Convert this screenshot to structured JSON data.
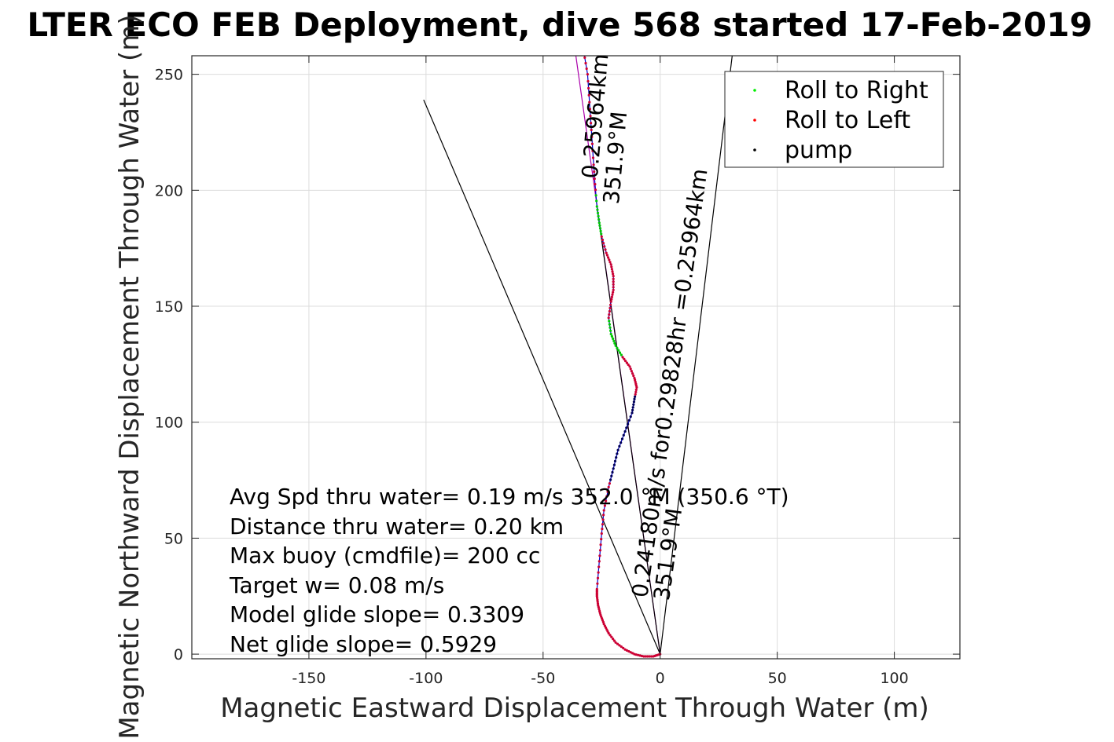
{
  "chart_data": {
    "type": "scatter",
    "title": "LTER ECO FEB Deployment, dive 568 started 17-Feb-2019",
    "xlabel": "Magnetic Eastward Displacement Through Water (m)",
    "ylabel": "Magnetic Northward Displacement Through Water (m)",
    "xlim": [
      -200,
      128
    ],
    "ylim": [
      -2,
      258
    ],
    "xticks": [
      -150,
      -100,
      -50,
      0,
      50,
      100
    ],
    "yticks": [
      0,
      50,
      100,
      150,
      200,
      250
    ],
    "grid": true,
    "legend_position": "top-right",
    "legend": [
      {
        "label": "Roll to Right",
        "color": "#00ee00"
      },
      {
        "label": "Roll to Left",
        "color": "#ff0000"
      },
      {
        "label": "pump",
        "color": "#000000"
      }
    ],
    "annotations": [
      "Avg Spd thru water=  0.19 m/s  352.0 °M (350.6 °T)",
      "Distance thru water=  0.20 km",
      "Max buoy (cmdfile)= 200 cc",
      "Target w= 0.08 m/s",
      "Model glide slope= 0.3309",
      "Net glide slope= 0.5929"
    ],
    "rotated_labels": [
      {
        "line1": "0.25964km",
        "line2": "351.9°M"
      },
      {
        "line1": "0.24180m/s for0.29828hr =0.25964km",
        "line2": "351.9°M"
      }
    ],
    "track": [
      [
        0,
        0
      ],
      [
        -3,
        -1
      ],
      [
        -7,
        -1
      ],
      [
        -11,
        0
      ],
      [
        -15,
        2
      ],
      [
        -19,
        5
      ],
      [
        -22,
        9
      ],
      [
        -24,
        13
      ],
      [
        -25.5,
        17
      ],
      [
        -26.5,
        21
      ],
      [
        -27,
        25
      ],
      [
        -27,
        28
      ],
      [
        -26,
        40
      ],
      [
        -25,
        52
      ],
      [
        -24,
        62
      ],
      [
        -22,
        72
      ],
      [
        -20,
        80
      ],
      [
        -18,
        88
      ],
      [
        -15,
        96
      ],
      [
        -12,
        104
      ],
      [
        -11,
        110
      ],
      [
        -10,
        115
      ],
      [
        -11,
        119
      ],
      [
        -13,
        124
      ],
      [
        -16,
        128
      ],
      [
        -19,
        133
      ],
      [
        -21,
        138
      ],
      [
        -22,
        145
      ],
      [
        -21,
        152
      ],
      [
        -20,
        157
      ],
      [
        -20,
        163
      ],
      [
        -21,
        168
      ],
      [
        -23,
        173
      ],
      [
        -25,
        180
      ],
      [
        -26,
        186
      ],
      [
        -27,
        193
      ],
      [
        -28,
        205
      ],
      [
        -29,
        220
      ],
      [
        -30,
        235
      ],
      [
        -31,
        250
      ],
      [
        -33,
        262
      ]
    ],
    "guide_lines": [
      [
        [
          0,
          0
        ],
        [
          -101,
          239
        ]
      ],
      [
        [
          0,
          0
        ],
        [
          31,
          260
        ]
      ],
      [
        [
          0,
          0
        ],
        [
          -36,
          258
        ]
      ],
      [
        [
          0,
          0
        ],
        [
          -27,
          193
        ]
      ]
    ]
  }
}
